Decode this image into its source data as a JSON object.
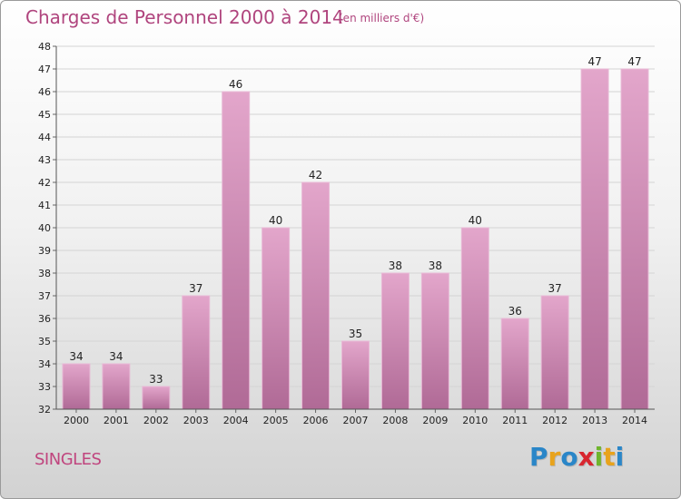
{
  "header": {
    "title": "Charges de Personnel 2000 à 2014",
    "subtitle": "(en milliers d'€)"
  },
  "footer": {
    "category": "SINGLES",
    "logo_text": "Proxiti",
    "logo_colors": [
      "#2a86c8",
      "#e8a31c",
      "#2a86c8",
      "#d8262f",
      "#6fb52c",
      "#e8a31c",
      "#2a86c8"
    ]
  },
  "chart_data": {
    "type": "bar",
    "categories": [
      "2000",
      "2001",
      "2002",
      "2003",
      "2004",
      "2005",
      "2006",
      "2007",
      "2008",
      "2009",
      "2010",
      "2011",
      "2012",
      "2013",
      "2014"
    ],
    "values": [
      34,
      34,
      33,
      37,
      46,
      40,
      42,
      35,
      38,
      38,
      40,
      36,
      37,
      47,
      47
    ],
    "title": "Charges de Personnel 2000 à 2014",
    "subtitle": "(en milliers d'€)",
    "ylim": [
      32,
      48
    ],
    "yticks": [
      32,
      33,
      34,
      35,
      36,
      37,
      38,
      39,
      40,
      41,
      42,
      43,
      44,
      45,
      46,
      47,
      48
    ],
    "grid": true,
    "bar_color_top": "#e3a6cb",
    "bar_color_bottom": "#b06a96"
  }
}
